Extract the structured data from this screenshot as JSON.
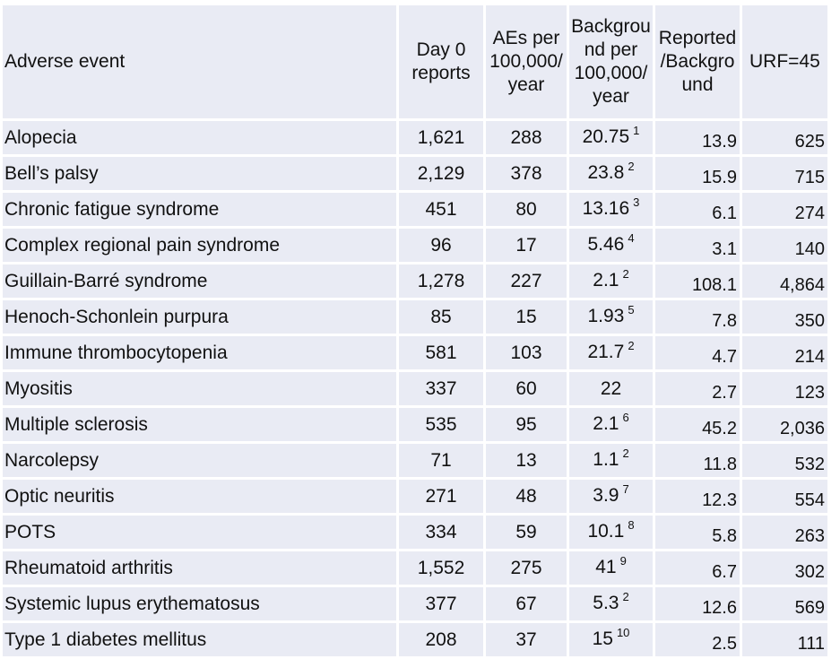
{
  "headers": {
    "event": "Adverse event",
    "day0": "Day 0 reports",
    "aes": "AEs per 100,000/ year",
    "background": "Backgrou nd per 100,000/ year",
    "ratio": "Reported /Backgro und",
    "urf": "URF=45"
  },
  "rows": [
    {
      "event": "Alopecia",
      "day0": "1,621",
      "aes": "288",
      "bg": "20.75",
      "ref": "1",
      "ratio": "13.9",
      "urf": "625"
    },
    {
      "event": "Bell’s palsy",
      "day0": "2,129",
      "aes": "378",
      "bg": "23.8",
      "ref": "2",
      "ratio": "15.9",
      "urf": "715"
    },
    {
      "event": "Chronic fatigue syndrome",
      "day0": "451",
      "aes": "80",
      "bg": "13.16",
      "ref": "3",
      "ratio": "6.1",
      "urf": "274"
    },
    {
      "event": "Complex regional pain syndrome",
      "day0": "96",
      "aes": "17",
      "bg": "5.46",
      "ref": "4",
      "ratio": "3.1",
      "urf": "140"
    },
    {
      "event": "Guillain-Barré syndrome",
      "day0": "1,278",
      "aes": "227",
      "bg": "2.1",
      "ref": "2",
      "ratio": "108.1",
      "urf": "4,864"
    },
    {
      "event": "Henoch-Schonlein purpura",
      "day0": "85",
      "aes": "15",
      "bg": "1.93",
      "ref": "5",
      "ratio": "7.8",
      "urf": "350"
    },
    {
      "event": "Immune thrombocytopenia",
      "day0": "581",
      "aes": "103",
      "bg": "21.7",
      "ref": "2",
      "ratio": "4.7",
      "urf": "214"
    },
    {
      "event": "Myositis",
      "day0": "337",
      "aes": "60",
      "bg": "22",
      "ref": "",
      "ratio": "2.7",
      "urf": "123"
    },
    {
      "event": "Multiple sclerosis",
      "day0": "535",
      "aes": "95",
      "bg": "2.1",
      "ref": "6",
      "ratio": "45.2",
      "urf": "2,036"
    },
    {
      "event": "Narcolepsy",
      "day0": "71",
      "aes": "13",
      "bg": "1.1",
      "ref": "2",
      "ratio": "11.8",
      "urf": "532"
    },
    {
      "event": "Optic neuritis",
      "day0": "271",
      "aes": "48",
      "bg": "3.9",
      "ref": "7",
      "ratio": "12.3",
      "urf": "554"
    },
    {
      "event": "POTS",
      "day0": "334",
      "aes": "59",
      "bg": "10.1",
      "ref": "8",
      "ratio": "5.8",
      "urf": "263"
    },
    {
      "event": "Rheumatoid arthritis",
      "day0": "1,552",
      "aes": "275",
      "bg": "41",
      "ref": "9",
      "ratio": "6.7",
      "urf": "302"
    },
    {
      "event": "Systemic lupus erythematosus",
      "day0": "377",
      "aes": "67",
      "bg": "5.3",
      "ref": "2",
      "ratio": "12.6",
      "urf": "569"
    },
    {
      "event": "Type 1 diabetes mellitus",
      "day0": "208",
      "aes": "37",
      "bg": "15",
      "ref": "10",
      "ratio": "2.5",
      "urf": "111"
    }
  ],
  "colors": {
    "cell_background": "#e9ebf4",
    "text": "#111111"
  }
}
